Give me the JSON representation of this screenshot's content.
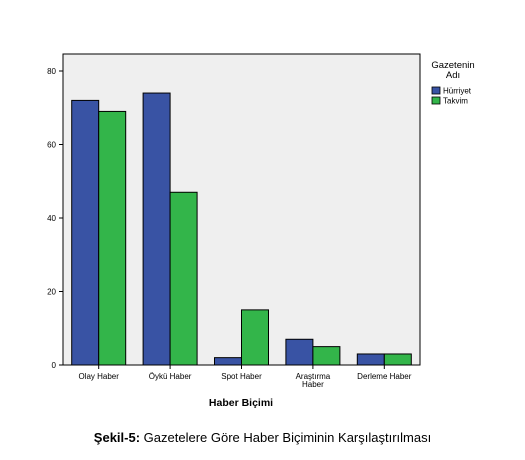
{
  "chart_data": {
    "type": "bar",
    "title": "",
    "xlabel": "Haber Biçimi",
    "ylabel": "",
    "ylim": [
      0,
      80
    ],
    "yticks": [
      0,
      20,
      40,
      60,
      80
    ],
    "grid": false,
    "legend_position": "right",
    "legend_title": [
      "Gazetenin",
      "Adı"
    ],
    "categories": [
      [
        "Olay Haber"
      ],
      [
        "Öykü Haber"
      ],
      [
        "Spot Haber"
      ],
      [
        "Araştırma",
        "Haber"
      ],
      [
        "Derleme Haber"
      ]
    ],
    "series": [
      {
        "name": "Hürriyet",
        "color": "#3953A4",
        "values": [
          72,
          74,
          2,
          7,
          3
        ]
      },
      {
        "name": "Takvim",
        "color": "#33B54A",
        "values": [
          69,
          47,
          15,
          5,
          3
        ]
      }
    ],
    "plot_background": "#EFEFEF"
  },
  "caption": {
    "prefix": "Şekil-5:",
    "text": " Gazetelere Göre Haber Biçiminin Karşılaştırılması"
  }
}
